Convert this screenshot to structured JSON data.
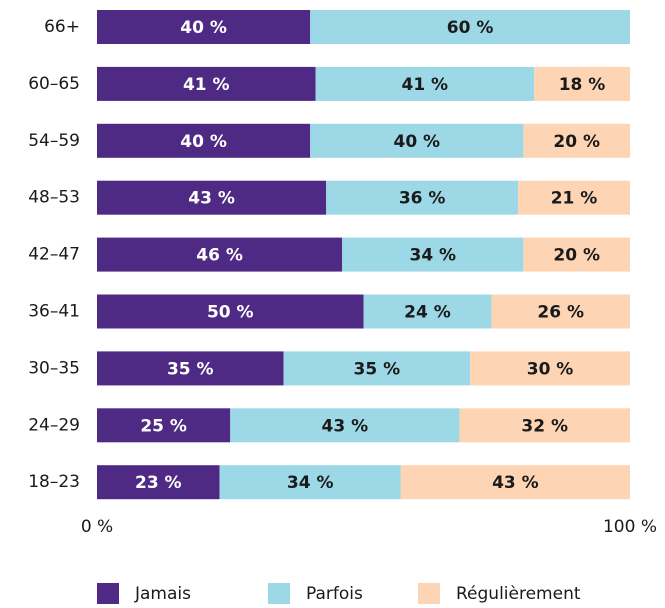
{
  "chart_data": {
    "type": "stacked-bar-horizontal",
    "categories": [
      "66+",
      "60–65",
      "54–59",
      "48–53",
      "42–47",
      "36–41",
      "30–35",
      "24–29",
      "18–23"
    ],
    "series": [
      {
        "name": "Jamais",
        "color": "#4f2a84",
        "values": [
          40,
          41,
          40,
          43,
          46,
          50,
          35,
          25,
          23
        ],
        "value_labels": [
          "40 %",
          "41 %",
          "40 %",
          "43 %",
          "46 %",
          "50 %",
          "35 %",
          "25 %",
          "23 %"
        ]
      },
      {
        "name": "Parfois",
        "color": "#9dd8e7",
        "values": [
          60,
          41,
          40,
          36,
          34,
          24,
          35,
          43,
          34
        ],
        "value_labels": [
          "60 %",
          "41 %",
          "40 %",
          "36 %",
          "34 %",
          "24 %",
          "35 %",
          "43 %",
          "34 %"
        ]
      },
      {
        "name": "Régulièrement",
        "color": "#fdd5b5",
        "values": [
          null,
          18,
          20,
          21,
          20,
          26,
          30,
          32,
          43
        ],
        "value_labels": [
          null,
          "18 %",
          "20 %",
          "21 %",
          "20 %",
          "26 %",
          "30 %",
          "32 %",
          "43 %"
        ]
      }
    ],
    "xlim": [
      0,
      100
    ],
    "xticks": [
      {
        "value": 0,
        "label": "0 %"
      },
      {
        "value": 100,
        "label": "100 %"
      }
    ],
    "legend": "bottom"
  }
}
